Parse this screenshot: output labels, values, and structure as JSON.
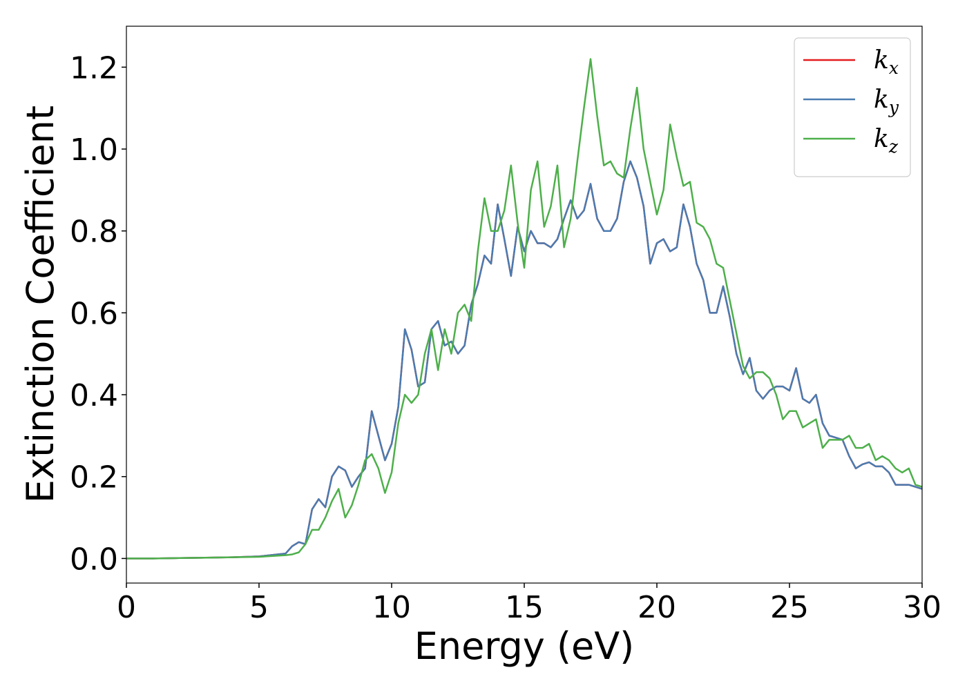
{
  "chart_data": {
    "type": "line",
    "xlabel": "Energy (eV)",
    "ylabel": "Extinction Coefficient",
    "xlim": [
      0,
      30
    ],
    "ylim": [
      -0.06,
      1.3
    ],
    "xticks": [
      0,
      5,
      10,
      15,
      20,
      25,
      30
    ],
    "yticks": [
      {
        "value": 0,
        "label": "0.0"
      },
      0.2,
      0.4,
      0.6,
      0.8,
      {
        "value": 1,
        "label": "1.0"
      },
      1.2
    ],
    "grid": false,
    "legend": "upper right",
    "x": [
      0,
      1,
      2,
      3,
      4,
      5,
      6,
      6.25,
      6.5,
      6.75,
      7,
      7.25,
      7.5,
      7.75,
      8,
      8.25,
      8.5,
      8.75,
      9,
      9.25,
      9.5,
      9.75,
      10,
      10.25,
      10.5,
      10.75,
      11,
      11.25,
      11.5,
      11.75,
      12,
      12.25,
      12.5,
      12.75,
      13,
      13.25,
      13.5,
      13.75,
      14,
      14.25,
      14.5,
      14.75,
      15,
      15.25,
      15.5,
      15.75,
      16,
      16.25,
      16.5,
      16.75,
      17,
      17.25,
      17.5,
      17.75,
      18,
      18.25,
      18.5,
      18.75,
      19,
      19.25,
      19.5,
      19.75,
      20,
      20.25,
      20.5,
      20.75,
      21,
      21.25,
      21.5,
      21.75,
      22,
      22.25,
      22.5,
      22.75,
      23,
      23.25,
      23.5,
      23.75,
      24,
      24.25,
      24.5,
      24.75,
      25,
      25.25,
      25.5,
      25.75,
      26,
      26.25,
      26.5,
      26.75,
      27,
      27.25,
      27.5,
      27.75,
      28,
      28.25,
      28.5,
      28.75,
      29,
      29.25,
      29.5,
      29.75,
      30
    ],
    "series": [
      {
        "name": "kx",
        "color": "#e41a1c",
        "values": [
          0,
          0,
          0.001,
          0.002,
          0.003,
          0.005,
          0.012,
          0.03,
          0.04,
          0.035,
          0.12,
          0.145,
          0.125,
          0.2,
          0.225,
          0.215,
          0.175,
          0.2,
          0.22,
          0.36,
          0.3,
          0.24,
          0.28,
          0.37,
          0.56,
          0.51,
          0.42,
          0.43,
          0.56,
          0.58,
          0.52,
          0.53,
          0.5,
          0.52,
          0.62,
          0.67,
          0.74,
          0.72,
          0.865,
          0.78,
          0.69,
          0.81,
          0.75,
          0.8,
          0.77,
          0.77,
          0.76,
          0.78,
          0.83,
          0.875,
          0.83,
          0.85,
          0.915,
          0.83,
          0.8,
          0.8,
          0.83,
          0.92,
          0.97,
          0.93,
          0.86,
          0.72,
          0.77,
          0.78,
          0.75,
          0.76,
          0.865,
          0.81,
          0.72,
          0.68,
          0.6,
          0.6,
          0.665,
          0.59,
          0.5,
          0.45,
          0.49,
          0.41,
          0.39,
          0.41,
          0.42,
          0.42,
          0.41,
          0.465,
          0.39,
          0.38,
          0.4,
          0.33,
          0.3,
          0.295,
          0.29,
          0.25,
          0.22,
          0.23,
          0.235,
          0.225,
          0.225,
          0.21,
          0.18,
          0.18,
          0.18,
          0.175,
          0.17
        ]
      },
      {
        "name": "ky",
        "color": "#4a7bb0",
        "values": [
          0,
          0,
          0.001,
          0.002,
          0.003,
          0.005,
          0.012,
          0.03,
          0.04,
          0.035,
          0.12,
          0.145,
          0.125,
          0.2,
          0.225,
          0.215,
          0.175,
          0.2,
          0.22,
          0.36,
          0.3,
          0.24,
          0.28,
          0.37,
          0.56,
          0.51,
          0.42,
          0.43,
          0.56,
          0.58,
          0.52,
          0.53,
          0.5,
          0.52,
          0.62,
          0.67,
          0.74,
          0.72,
          0.865,
          0.78,
          0.69,
          0.81,
          0.75,
          0.8,
          0.77,
          0.77,
          0.76,
          0.78,
          0.83,
          0.875,
          0.83,
          0.85,
          0.915,
          0.83,
          0.8,
          0.8,
          0.83,
          0.92,
          0.97,
          0.93,
          0.86,
          0.72,
          0.77,
          0.78,
          0.75,
          0.76,
          0.865,
          0.81,
          0.72,
          0.68,
          0.6,
          0.6,
          0.665,
          0.59,
          0.5,
          0.45,
          0.49,
          0.41,
          0.39,
          0.41,
          0.42,
          0.42,
          0.41,
          0.465,
          0.39,
          0.38,
          0.4,
          0.33,
          0.3,
          0.295,
          0.29,
          0.25,
          0.22,
          0.23,
          0.235,
          0.225,
          0.225,
          0.21,
          0.18,
          0.18,
          0.18,
          0.175,
          0.17
        ]
      },
      {
        "name": "kz",
        "color": "#4daf4a",
        "values": [
          0,
          0,
          0.001,
          0.002,
          0.003,
          0.004,
          0.008,
          0.01,
          0.015,
          0.035,
          0.07,
          0.07,
          0.1,
          0.14,
          0.17,
          0.1,
          0.13,
          0.18,
          0.24,
          0.255,
          0.22,
          0.16,
          0.21,
          0.33,
          0.4,
          0.38,
          0.4,
          0.5,
          0.56,
          0.46,
          0.56,
          0.5,
          0.6,
          0.62,
          0.58,
          0.75,
          0.88,
          0.8,
          0.8,
          0.85,
          0.96,
          0.82,
          0.71,
          0.9,
          0.97,
          0.81,
          0.86,
          0.96,
          0.76,
          0.83,
          0.97,
          1.1,
          1.22,
          1.08,
          0.96,
          0.97,
          0.94,
          0.93,
          1.05,
          1.15,
          1.0,
          0.92,
          0.84,
          0.9,
          1.06,
          0.98,
          0.91,
          0.92,
          0.82,
          0.81,
          0.78,
          0.72,
          0.71,
          0.63,
          0.55,
          0.47,
          0.44,
          0.455,
          0.455,
          0.44,
          0.4,
          0.34,
          0.36,
          0.36,
          0.32,
          0.33,
          0.34,
          0.27,
          0.29,
          0.29,
          0.29,
          0.3,
          0.27,
          0.27,
          0.28,
          0.24,
          0.25,
          0.24,
          0.22,
          0.21,
          0.22,
          0.18,
          0.175
        ]
      }
    ]
  }
}
